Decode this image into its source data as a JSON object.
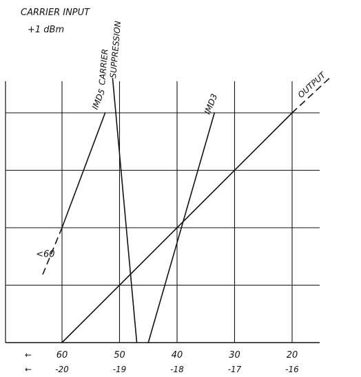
{
  "chart_data": {
    "type": "line",
    "header": {
      "line1": "CARRIER INPUT",
      "line2": "+1 dBm"
    },
    "x_scale_top": {
      "ticks": [
        60,
        50,
        40,
        30,
        20
      ],
      "arrow": "←"
    },
    "x_scale_bottom": {
      "ticks": [
        -20,
        -19,
        -18,
        -17,
        -16
      ],
      "arrow": "←"
    },
    "xlim": [
      65,
      15
    ],
    "ylim": [
      0,
      4
    ],
    "grid": true,
    "series": [
      {
        "name": "OUTPUT",
        "points": [
          [
            60,
            0
          ],
          [
            20,
            4
          ]
        ],
        "extension": [
          [
            20,
            4
          ],
          [
            13,
            4.65
          ]
        ]
      },
      {
        "name": "IMD3",
        "points": [
          [
            45,
            0
          ],
          [
            33.5,
            4
          ]
        ]
      },
      {
        "name": "IMD5",
        "points": [
          [
            60,
            2
          ],
          [
            52.5,
            4
          ]
        ],
        "extension": [
          [
            60,
            2
          ],
          [
            63.5,
            1.15
          ]
        ]
      },
      {
        "name": "CARRIER SUPPRESSION",
        "name_lines": [
          "CARRIER",
          "SUPPRESSION"
        ],
        "points": [
          [
            47,
            0
          ],
          [
            51.2,
            4.6
          ]
        ]
      }
    ],
    "annotations": [
      {
        "text": "<60",
        "x": 62.5,
        "y": 1.55
      }
    ]
  }
}
